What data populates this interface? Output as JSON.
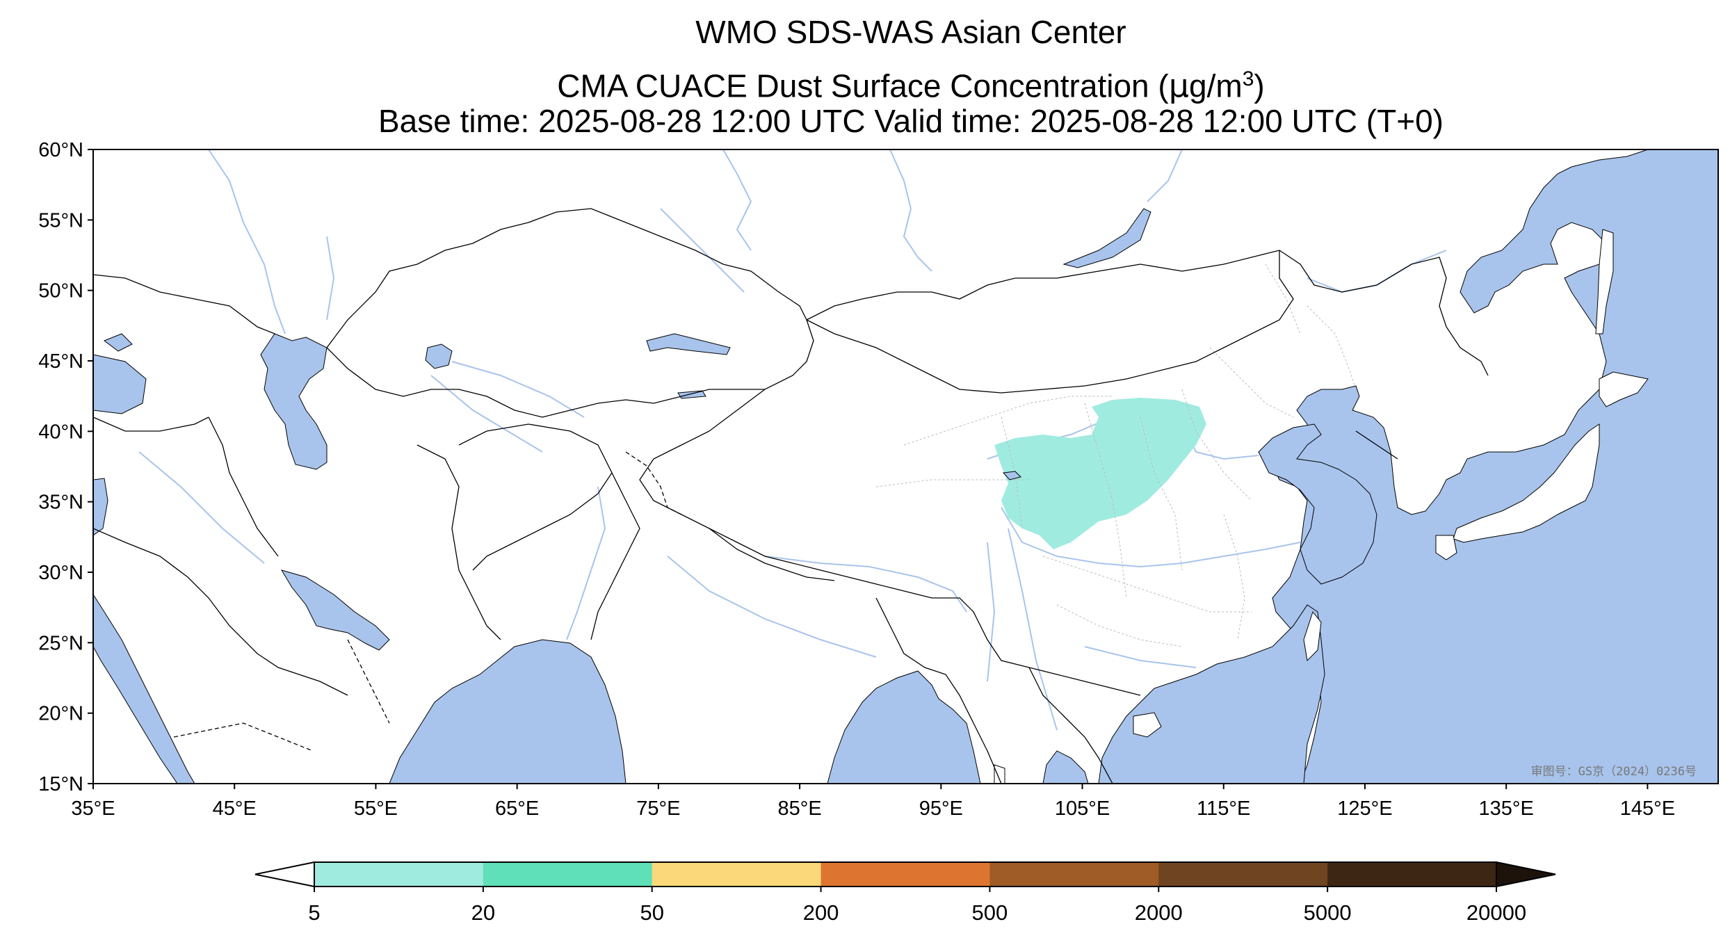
{
  "title": {
    "line1": "WMO SDS-WAS Asian Center",
    "line2_prefix": "CMA CUACE Dust Surface Concentration (",
    "line2_mu": "μ",
    "line2_unit": "g/m",
    "line2_sup": "3",
    "line2_suffix": ")",
    "line3": "Base time: 2025-08-28 12:00 UTC Valid time: 2025-08-28 12:00 UTC (T+0)"
  },
  "map": {
    "projection": "PlateCarree",
    "lon_range": [
      35,
      150
    ],
    "lat_range": [
      15,
      60
    ],
    "lat_ticks": [
      "60°N",
      "55°N",
      "50°N",
      "45°N",
      "40°N",
      "35°N",
      "30°N",
      "25°N",
      "20°N",
      "15°N"
    ],
    "lon_ticks": [
      "35°E",
      "45°E",
      "55°E",
      "65°E",
      "75°E",
      "85°E",
      "95°E",
      "105°E",
      "115°E",
      "125°E",
      "135°E",
      "145°E"
    ],
    "colors": {
      "ocean": "#a8c4ec",
      "land": "#ffffff",
      "borders": "#000000",
      "rivers": "#a8c4ec",
      "provinces": "#bbbbbb",
      "dust_5_20": "#a0ebe0"
    },
    "dust_region": {
      "level": "5-20",
      "location": "northwestern China / Qaidam Basin to Hetao"
    },
    "review_number": "审图号：GS京（2024）0236号"
  },
  "colorbar": {
    "levels": [
      "5",
      "20",
      "50",
      "200",
      "500",
      "2000",
      "5000",
      "20000"
    ],
    "colors": [
      "#a0ebe0",
      "#5fe0b8",
      "#fbd97a",
      "#dd7530",
      "#a05c26",
      "#6f4420",
      "#3e2614"
    ],
    "under_color": "#ffffff",
    "over_color": "#1e130a",
    "extend": "both"
  }
}
